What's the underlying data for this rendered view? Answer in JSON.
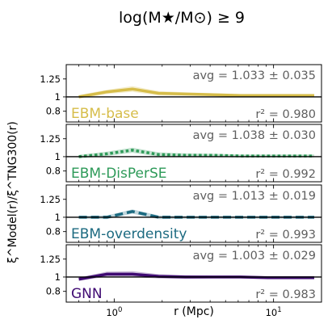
{
  "figure": {
    "title": "log(M★/M⊙) ≥ 9",
    "ylabel": "ξ^Model(r)/ξ^TNG300(r)",
    "xlabel": "r (Mpc)"
  },
  "chart_data": [
    {
      "type": "line",
      "series_label": "EBM-base",
      "color": "#d6bd4a",
      "style": "solid",
      "avg_text": "avg = 1.033 ± 0.035",
      "r2_text": "r² = 0.980",
      "x": [
        0.6,
        0.9,
        1.3,
        1.9,
        2.8,
        4.2,
        6.2,
        9.2,
        13.6,
        18.0
      ],
      "y": [
        1.0,
        1.07,
        1.11,
        1.05,
        1.04,
        1.03,
        1.02,
        1.02,
        1.02,
        1.02
      ],
      "band": [
        0.025,
        0.03,
        0.04,
        0.03,
        0.025,
        0.02,
        0.02,
        0.02,
        0.02,
        0.02
      ],
      "ylim": [
        0.65,
        1.45
      ],
      "yticks": [
        0.8,
        1,
        1.25
      ],
      "xlim": [
        0.5,
        20
      ],
      "xscale": "log"
    },
    {
      "type": "line",
      "series_label": "EBM-DisPerSE",
      "color": "#2e9a59",
      "style": "dotted",
      "avg_text": "avg = 1.038 ± 0.030",
      "r2_text": "r² = 0.992",
      "x": [
        0.6,
        0.9,
        1.3,
        1.9,
        2.8,
        4.2,
        6.2,
        9.2,
        13.6,
        18.0
      ],
      "y": [
        1.0,
        1.04,
        1.09,
        1.03,
        1.02,
        1.02,
        1.01,
        1.01,
        1.01,
        1.01
      ],
      "band": [
        0.025,
        0.03,
        0.035,
        0.03,
        0.025,
        0.02,
        0.02,
        0.02,
        0.02,
        0.02
      ],
      "ylim": [
        0.65,
        1.45
      ],
      "yticks": [
        0.8,
        1,
        1.25
      ],
      "xlim": [
        0.5,
        20
      ],
      "xscale": "log"
    },
    {
      "type": "line",
      "series_label": "EBM-overdensity",
      "color": "#1c6a80",
      "style": "dashed",
      "avg_text": "avg = 1.013 ± 0.019",
      "r2_text": "r² = 0.993",
      "x": [
        0.6,
        0.9,
        1.3,
        1.9,
        2.8,
        4.2,
        6.2,
        9.2,
        13.6,
        18.0
      ],
      "y": [
        1.0,
        1.0,
        1.08,
        1.0,
        1.0,
        1.0,
        1.0,
        1.0,
        1.0,
        1.0
      ],
      "band": [
        0.02,
        0.025,
        0.03,
        0.025,
        0.02,
        0.02,
        0.02,
        0.02,
        0.02,
        0.02
      ],
      "ylim": [
        0.65,
        1.45
      ],
      "yticks": [
        0.8,
        1,
        1.25
      ],
      "xlim": [
        0.5,
        20
      ],
      "xscale": "log"
    },
    {
      "type": "line",
      "series_label": "GNN",
      "color": "#3f0a72",
      "style": "solid",
      "avg_text": "avg = 1.003 ± 0.029",
      "r2_text": "r² = 0.983",
      "x": [
        0.6,
        0.9,
        1.3,
        1.9,
        2.8,
        4.2,
        6.2,
        9.2,
        13.6,
        18.0
      ],
      "y": [
        0.97,
        1.04,
        1.04,
        1.01,
        1.0,
        1.0,
        1.0,
        0.99,
        0.99,
        0.99
      ],
      "band": [
        0.025,
        0.035,
        0.04,
        0.03,
        0.025,
        0.02,
        0.02,
        0.02,
        0.02,
        0.02
      ],
      "ylim": [
        0.65,
        1.45
      ],
      "yticks": [
        0.8,
        1,
        1.25
      ],
      "xlim": [
        0.5,
        20
      ],
      "xscale": "log"
    }
  ],
  "xticks": [
    {
      "value": 1,
      "base": "10",
      "exp": "0"
    },
    {
      "value": 10,
      "base": "10",
      "exp": "1"
    }
  ]
}
